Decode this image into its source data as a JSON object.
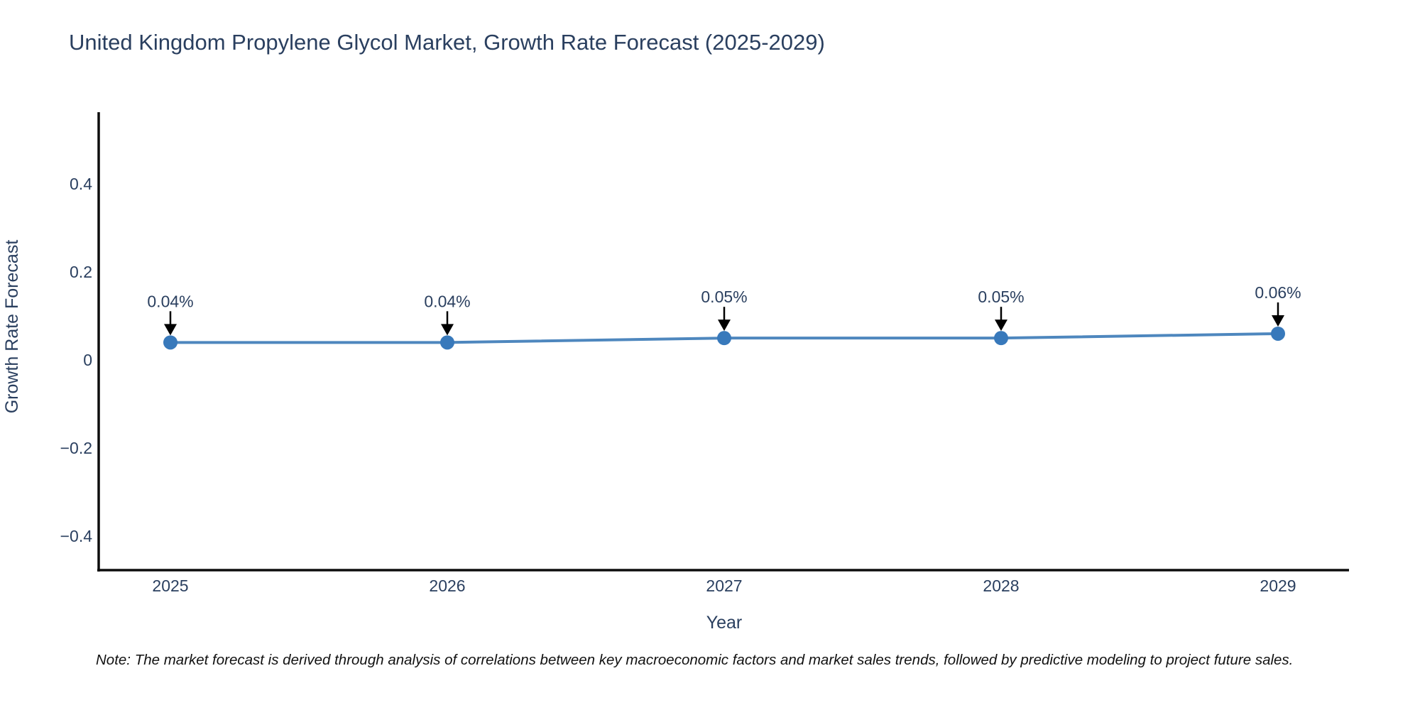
{
  "page": {
    "title": "United Kingdom Propylene Glycol Market, Growth Rate Forecast (2025-2029)",
    "footnote": "Note: The market forecast is derived through analysis of correlations between key macroeconomic factors and market sales trends, followed by predictive modeling to project future sales."
  },
  "chart_data": {
    "type": "line",
    "title": "United Kingdom Propylene Glycol Market, Growth Rate Forecast (2025-2029)",
    "xlabel": "Year",
    "ylabel": "Growth Rate Forecast",
    "categories": [
      "2025",
      "2026",
      "2027",
      "2028",
      "2029"
    ],
    "series": [
      {
        "name": "Growth Rate Forecast",
        "values": [
          0.04,
          0.04,
          0.05,
          0.05,
          0.06
        ]
      }
    ],
    "point_labels": [
      "0.04%",
      "0.04%",
      "0.05%",
      "0.05%",
      "0.06%"
    ],
    "y_ticks": [
      -0.4,
      -0.2,
      0,
      0.2,
      0.4
    ],
    "ylim": [
      -0.477,
      0.563
    ],
    "grid": false,
    "legend": false,
    "annotations": "each point labeled with percent value and a downward black arrow",
    "colors": {
      "line": "#4e87be",
      "marker": "#3879bb",
      "arrow": "#000000",
      "axis": "#0d0d0d",
      "text": "#2a3f5f"
    }
  }
}
